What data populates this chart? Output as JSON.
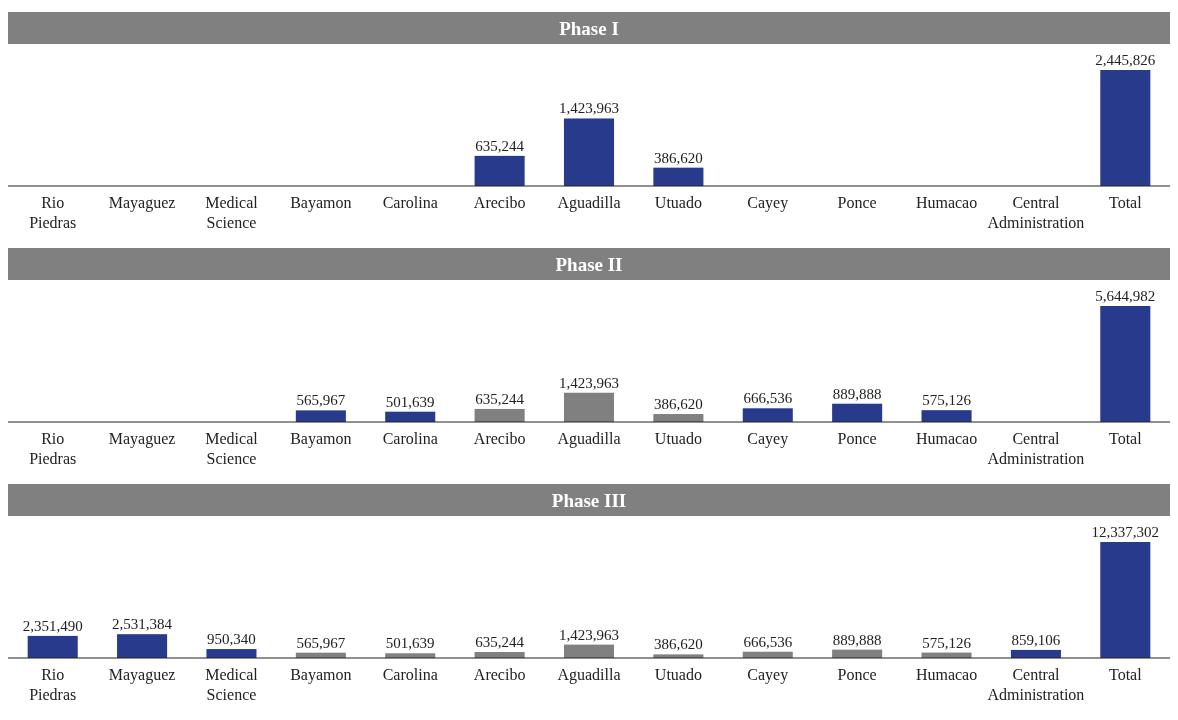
{
  "chart_data": [
    {
      "type": "bar",
      "title": "Phase I",
      "categories": [
        "Rio Piedras",
        "Mayaguez",
        "Medical Science",
        "Bayamon",
        "Carolina",
        "Arecibo",
        "Aguadilla",
        "Utuado",
        "Cayey",
        "Ponce",
        "Humacao",
        "Central Administration",
        "Total"
      ],
      "values": [
        null,
        null,
        null,
        null,
        null,
        635244,
        1423963,
        386620,
        null,
        null,
        null,
        null,
        2445826
      ],
      "value_labels": [
        null,
        null,
        null,
        null,
        null,
        "635,244",
        "1,423,963",
        "386,620",
        null,
        null,
        null,
        null,
        "2,445,826"
      ],
      "colors": [
        null,
        null,
        null,
        null,
        null,
        "#283a8c",
        "#283a8c",
        "#283a8c",
        null,
        null,
        null,
        null,
        "#283a8c"
      ]
    },
    {
      "type": "bar",
      "title": "Phase II",
      "categories": [
        "Rio Piedras",
        "Mayaguez",
        "Medical Science",
        "Bayamon",
        "Carolina",
        "Arecibo",
        "Aguadilla",
        "Utuado",
        "Cayey",
        "Ponce",
        "Humacao",
        "Central Administration",
        "Total"
      ],
      "values": [
        null,
        null,
        null,
        565967,
        501639,
        635244,
        1423963,
        386620,
        666536,
        889888,
        575126,
        null,
        5644982
      ],
      "value_labels": [
        null,
        null,
        null,
        "565,967",
        "501,639",
        "635,244",
        "1,423,963",
        "386,620",
        "666,536",
        "889,888",
        "575,126",
        null,
        "5,644,982"
      ],
      "colors": [
        null,
        null,
        null,
        "#283a8c",
        "#283a8c",
        "#808080",
        "#808080",
        "#808080",
        "#283a8c",
        "#283a8c",
        "#283a8c",
        null,
        "#283a8c"
      ]
    },
    {
      "type": "bar",
      "title": "Phase III",
      "categories": [
        "Rio Piedras",
        "Mayaguez",
        "Medical Science",
        "Bayamon",
        "Carolina",
        "Arecibo",
        "Aguadilla",
        "Utuado",
        "Cayey",
        "Ponce",
        "Humacao",
        "Central Administration",
        "Total"
      ],
      "values": [
        2351490,
        2531384,
        950340,
        565967,
        501639,
        635244,
        1423963,
        386620,
        666536,
        889888,
        575126,
        859106,
        12337302
      ],
      "value_labels": [
        "2,351,490",
        "2,531,384",
        "950,340",
        "565,967",
        "501,639",
        "635,244",
        "1,423,963",
        "386,620",
        "666,536",
        "889,888",
        "575,126",
        "859,106",
        "12,337,302"
      ],
      "colors": [
        "#283a8c",
        "#283a8c",
        "#283a8c",
        "#808080",
        "#808080",
        "#808080",
        "#808080",
        "#808080",
        "#808080",
        "#808080",
        "#808080",
        "#283a8c",
        "#283a8c"
      ]
    }
  ]
}
